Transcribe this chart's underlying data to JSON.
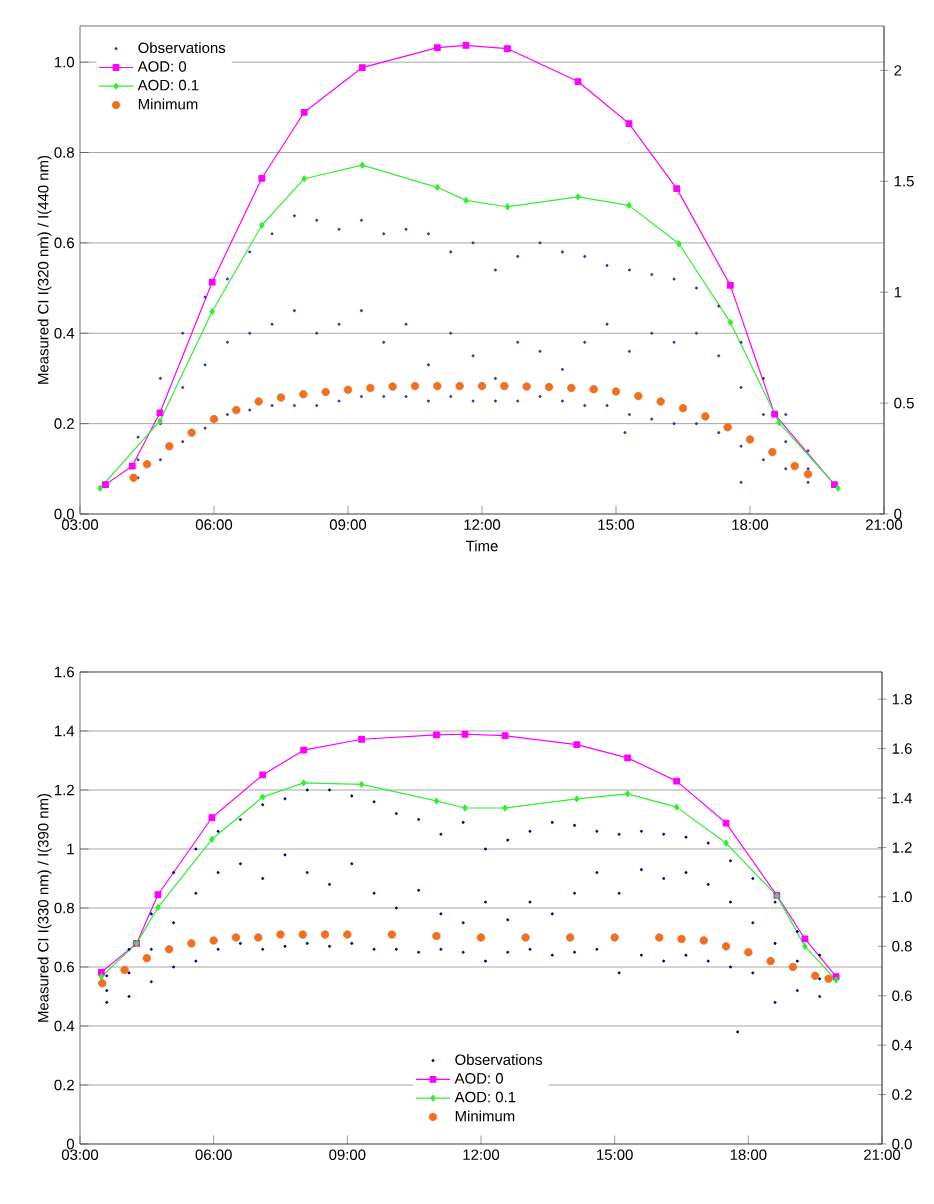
{
  "chart_data": [
    {
      "type": "scatter",
      "xlabel": "Time",
      "ylabel": "Measured CI  I(320 nm) / I(440 nm)",
      "xlim": [
        3,
        21
      ],
      "ylim": [
        0,
        1.08
      ],
      "y2lim": [
        0,
        2.2
      ],
      "xticks": [
        {
          "value": 3,
          "label": "03:00"
        },
        {
          "value": 6,
          "label": "06:00"
        },
        {
          "value": 9,
          "label": "09:00"
        },
        {
          "value": 12,
          "label": "12:00"
        },
        {
          "value": 15,
          "label": "15:00"
        },
        {
          "value": 18,
          "label": "18:00"
        },
        {
          "value": 21,
          "label": "21:00"
        }
      ],
      "yticks": [
        {
          "value": 0,
          "label": "0.0"
        },
        {
          "value": 0.2,
          "label": "0.2"
        },
        {
          "value": 0.4,
          "label": "0.4"
        },
        {
          "value": 0.6,
          "label": "0.6"
        },
        {
          "value": 0.8,
          "label": "0.8"
        },
        {
          "value": 1,
          "label": "1.0"
        }
      ],
      "y2ticks": [
        0,
        0.5,
        1,
        1.5,
        2
      ],
      "grid": "y",
      "legend": "top left",
      "series": [
        {
          "name": "Observations",
          "type": "scatter",
          "marker": "circle",
          "color": "#333399",
          "x": [
            4.3,
            4.3,
            4.3,
            4.8,
            4.8,
            4.8,
            5.3,
            5.3,
            5.3,
            5.8,
            5.8,
            5.8,
            6.3,
            6.3,
            6.3,
            6.8,
            6.8,
            6.8,
            7.3,
            7.3,
            7.3,
            7.8,
            7.8,
            7.8,
            8.3,
            8.3,
            8.3,
            8.8,
            8.8,
            8.8,
            9.3,
            9.3,
            9.3,
            9.8,
            9.8,
            9.8,
            10.3,
            10.3,
            10.3,
            10.8,
            10.8,
            10.8,
            11.3,
            11.3,
            11.3,
            11.8,
            11.8,
            11.8,
            12.3,
            12.3,
            12.3,
            12.8,
            12.8,
            12.8,
            13.3,
            13.3,
            13.3,
            13.8,
            13.8,
            13.8,
            14.3,
            14.3,
            14.3,
            14.8,
            14.8,
            14.8,
            15.3,
            15.3,
            15.3,
            15.8,
            15.8,
            15.8,
            16.3,
            16.3,
            16.3,
            16.8,
            16.8,
            16.8,
            17.3,
            17.3,
            17.3,
            17.8,
            17.8,
            17.8,
            18.3,
            18.3,
            18.3,
            18.8,
            18.8,
            18.8,
            19.3,
            19.3,
            19.3,
            17.8,
            15.2
          ],
          "values": [
            0.17,
            0.12,
            0.08,
            0.3,
            0.2,
            0.12,
            0.4,
            0.28,
            0.16,
            0.48,
            0.33,
            0.19,
            0.52,
            0.38,
            0.22,
            0.58,
            0.4,
            0.23,
            0.62,
            0.42,
            0.24,
            0.66,
            0.45,
            0.24,
            0.65,
            0.4,
            0.24,
            0.63,
            0.42,
            0.25,
            0.65,
            0.45,
            0.26,
            0.62,
            0.38,
            0.26,
            0.63,
            0.42,
            0.26,
            0.62,
            0.33,
            0.25,
            0.58,
            0.4,
            0.26,
            0.6,
            0.35,
            0.25,
            0.54,
            0.3,
            0.25,
            0.57,
            0.38,
            0.25,
            0.6,
            0.36,
            0.26,
            0.58,
            0.32,
            0.25,
            0.57,
            0.38,
            0.24,
            0.55,
            0.42,
            0.24,
            0.54,
            0.36,
            0.22,
            0.53,
            0.4,
            0.21,
            0.52,
            0.38,
            0.2,
            0.5,
            0.4,
            0.2,
            0.46,
            0.35,
            0.18,
            0.38,
            0.28,
            0.15,
            0.3,
            0.22,
            0.12,
            0.22,
            0.16,
            0.1,
            0.14,
            0.1,
            0.07,
            0.07,
            0.18
          ]
        },
        {
          "name": "AOD: 0",
          "type": "line",
          "marker": "square",
          "color": "#ff00ff",
          "x": [
            3.57,
            4.17,
            4.79,
            5.96,
            7.07,
            8.02,
            9.32,
            11.0,
            11.64,
            12.57,
            14.15,
            15.29,
            16.36,
            17.56,
            18.55,
            19.89
          ],
          "values": [
            0.065,
            0.106,
            0.224,
            0.513,
            0.743,
            0.889,
            0.988,
            1.032,
            1.037,
            1.03,
            0.957,
            0.864,
            0.72,
            0.506,
            0.221,
            0.065
          ]
        },
        {
          "name": "AOD: 0.1",
          "type": "line",
          "marker": "diamond",
          "color": "#33ee33",
          "x": [
            3.45,
            4.79,
            5.96,
            7.07,
            8.02,
            9.32,
            11.0,
            11.64,
            12.57,
            14.15,
            15.29,
            16.41,
            17.56,
            18.65,
            19.97
          ],
          "values": [
            0.057,
            0.206,
            0.448,
            0.639,
            0.742,
            0.772,
            0.723,
            0.694,
            0.68,
            0.702,
            0.683,
            0.598,
            0.424,
            0.202,
            0.057
          ]
        },
        {
          "name": "Minimum",
          "type": "scatter",
          "marker": "circle",
          "color": "#f07020",
          "x": [
            4.2,
            4.5,
            5,
            5.5,
            6,
            6.5,
            7,
            7.5,
            8,
            8.5,
            9,
            9.5,
            10,
            10.5,
            11,
            11.5,
            12,
            12.5,
            13,
            13.5,
            14,
            14.5,
            15,
            15.5,
            16,
            16.5,
            17,
            17.5,
            18,
            18.5,
            19,
            19.3
          ],
          "values": [
            0.08,
            0.11,
            0.15,
            0.18,
            0.21,
            0.23,
            0.249,
            0.258,
            0.265,
            0.27,
            0.275,
            0.279,
            0.282,
            0.283,
            0.283,
            0.283,
            0.283,
            0.283,
            0.282,
            0.281,
            0.279,
            0.276,
            0.271,
            0.261,
            0.249,
            0.234,
            0.216,
            0.192,
            0.165,
            0.137,
            0.106,
            0.088
          ]
        }
      ]
    },
    {
      "type": "scatter",
      "ylabel": "Measured CI I(330 nm) / I(390 nm)",
      "xlim": [
        3,
        21
      ],
      "ylim": [
        0,
        1.6
      ],
      "y2lim": [
        0,
        1.91
      ],
      "xticks": [
        {
          "value": 3,
          "label": "03:00"
        },
        {
          "value": 6,
          "label": "06:00"
        },
        {
          "value": 9,
          "label": "09:00"
        },
        {
          "value": 12,
          "label": "12:00"
        },
        {
          "value": 15,
          "label": "15:00"
        },
        {
          "value": 18,
          "label": "18:00"
        },
        {
          "value": 21,
          "label": "21:00"
        }
      ],
      "yticks": [
        0,
        0.2,
        0.4,
        0.6,
        0.8,
        1,
        1.2,
        1.4,
        1.6
      ],
      "y2ticks": [
        {
          "value": 0,
          "label": "0.0"
        },
        0.2,
        0.4,
        0.6,
        0.8,
        {
          "value": 1,
          "label": "1.0"
        },
        1.2,
        1.4,
        1.6,
        1.8
      ],
      "grid": "y",
      "legend": "bottom",
      "series": [
        {
          "name": "Observations",
          "type": "scatter",
          "marker": "circle",
          "color": "#000080",
          "x": [
            3.6,
            3.6,
            3.6,
            4.1,
            4.1,
            4.1,
            4.6,
            4.6,
            4.6,
            5.1,
            5.1,
            5.1,
            5.6,
            5.6,
            5.6,
            6.1,
            6.1,
            6.1,
            6.6,
            6.6,
            6.6,
            7.1,
            7.1,
            7.1,
            7.6,
            7.6,
            7.6,
            8.1,
            8.1,
            8.1,
            8.6,
            8.6,
            8.6,
            9.1,
            9.1,
            9.1,
            9.6,
            9.6,
            9.6,
            10.1,
            10.1,
            10.1,
            10.6,
            10.6,
            10.6,
            11.1,
            11.1,
            11.1,
            11.6,
            11.6,
            11.6,
            12.1,
            12.1,
            12.1,
            12.6,
            12.6,
            12.6,
            13.1,
            13.1,
            13.1,
            13.6,
            13.6,
            13.6,
            14.1,
            14.1,
            14.1,
            14.6,
            14.6,
            14.6,
            15.1,
            15.1,
            15.1,
            15.6,
            15.6,
            15.6,
            16.1,
            16.1,
            16.1,
            16.6,
            16.6,
            16.6,
            17.1,
            17.1,
            17.1,
            17.6,
            17.6,
            17.6,
            18.1,
            18.1,
            18.1,
            18.6,
            18.6,
            18.6,
            19.1,
            19.1,
            19.1,
            19.6,
            19.6,
            19.6,
            17.76
          ],
          "values": [
            0.57,
            0.52,
            0.48,
            0.66,
            0.58,
            0.5,
            0.78,
            0.66,
            0.55,
            0.92,
            0.75,
            0.6,
            1.0,
            0.85,
            0.62,
            1.06,
            0.92,
            0.66,
            1.1,
            0.95,
            0.68,
            1.15,
            0.9,
            0.66,
            1.17,
            0.98,
            0.67,
            1.2,
            0.92,
            0.68,
            1.2,
            0.88,
            0.67,
            1.18,
            0.95,
            0.68,
            1.16,
            0.85,
            0.66,
            1.12,
            0.8,
            0.66,
            1.1,
            0.86,
            0.65,
            1.05,
            0.78,
            0.66,
            1.09,
            0.75,
            0.65,
            1.0,
            0.82,
            0.62,
            1.03,
            0.76,
            0.65,
            1.06,
            0.82,
            0.66,
            1.09,
            0.78,
            0.64,
            1.08,
            0.85,
            0.65,
            1.06,
            0.92,
            0.66,
            1.05,
            0.85,
            0.58,
            1.06,
            0.93,
            0.64,
            1.05,
            0.9,
            0.62,
            1.04,
            0.92,
            0.64,
            1.02,
            0.88,
            0.62,
            0.96,
            0.82,
            0.6,
            0.9,
            0.75,
            0.58,
            0.82,
            0.68,
            0.48,
            0.72,
            0.62,
            0.52,
            0.64,
            0.56,
            0.5,
            0.38
          ]
        },
        {
          "name": "AOD: 0",
          "type": "line",
          "marker": "square",
          "color": "#ff00ff",
          "x": [
            3.48,
            4.27,
            4.75,
            5.96,
            7.1,
            8.02,
            9.32,
            11.0,
            11.64,
            12.54,
            14.15,
            15.29,
            16.39,
            17.5,
            18.64,
            19.27,
            19.97
          ],
          "values": [
            0.582,
            0.68,
            0.845,
            1.106,
            1.251,
            1.335,
            1.372,
            1.387,
            1.389,
            1.384,
            1.354,
            1.309,
            1.23,
            1.088,
            0.843,
            0.695,
            0.567
          ]
        },
        {
          "name": "AOD: 0.1",
          "type": "line",
          "marker": "diamond",
          "color": "#33ee33",
          "x": [
            3.48,
            4.27,
            4.75,
            5.96,
            7.1,
            8.02,
            9.32,
            11.0,
            11.64,
            12.54,
            14.15,
            15.29,
            16.39,
            17.5,
            18.64,
            19.27,
            19.97
          ],
          "values": [
            0.567,
            0.68,
            0.802,
            1.033,
            1.176,
            1.224,
            1.219,
            1.163,
            1.139,
            1.139,
            1.17,
            1.187,
            1.142,
            1.02,
            0.841,
            0.67,
            0.556
          ]
        },
        {
          "name": "Minimum",
          "type": "scatter",
          "marker": "circle",
          "color": "#f07020",
          "x": [
            3.5,
            4,
            4.5,
            5,
            5.5,
            6,
            6.5,
            7,
            7.5,
            8,
            8.5,
            9,
            10,
            11,
            12,
            13,
            14,
            15,
            16,
            16.5,
            17,
            17.5,
            18,
            18.5,
            19,
            19.5,
            19.8
          ],
          "values": [
            0.545,
            0.59,
            0.63,
            0.66,
            0.68,
            0.69,
            0.7,
            0.7,
            0.71,
            0.71,
            0.71,
            0.71,
            0.71,
            0.705,
            0.7,
            0.7,
            0.7,
            0.7,
            0.7,
            0.695,
            0.69,
            0.67,
            0.65,
            0.62,
            0.6,
            0.57,
            0.56
          ]
        }
      ]
    }
  ]
}
